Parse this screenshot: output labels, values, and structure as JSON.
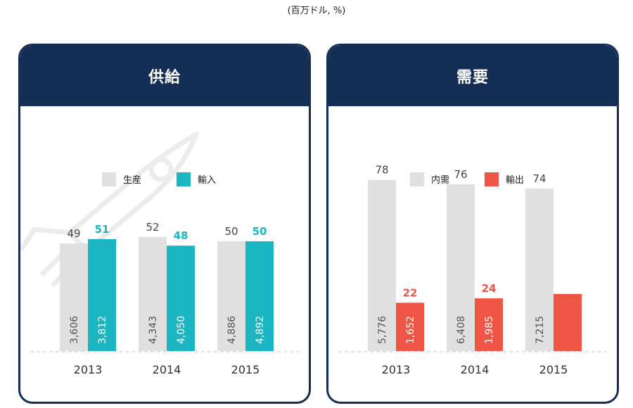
{
  "unit_note": "(百万ドル, %)",
  "chart_data": [
    {
      "type": "bar",
      "title": "供給",
      "categories": [
        "2013",
        "2014",
        "2015"
      ],
      "series": [
        {
          "name": "生産",
          "color": "#e0e0e0",
          "label_color": "#444444",
          "pct": [
            49,
            52,
            50
          ],
          "values": [
            "3,606",
            "4,343",
            "4,886"
          ]
        },
        {
          "name": "輸入",
          "color": "#1bb6c1",
          "label_color": "#1bb6c1",
          "pct": [
            51,
            48,
            50
          ],
          "values": [
            "3,812",
            "4,050",
            "4,892"
          ]
        }
      ],
      "ylim": [
        0,
        100
      ],
      "legend": "top-center"
    },
    {
      "type": "bar",
      "title": "需要",
      "categories": [
        "2013",
        "2014",
        "2015"
      ],
      "series": [
        {
          "name": "内需",
          "color": "#e0e0e0",
          "label_color": "#444444",
          "pct": [
            78,
            76,
            74
          ],
          "values": [
            "5,776",
            "6,408",
            "7,215"
          ]
        },
        {
          "name": "輸出",
          "color": "#ef5545",
          "label_color": "#ef5545",
          "pct": [
            22,
            24,
            null
          ],
          "values": [
            "1,652",
            "1,985",
            null
          ]
        }
      ],
      "ylim": [
        0,
        100
      ],
      "legend": "top-center"
    }
  ]
}
